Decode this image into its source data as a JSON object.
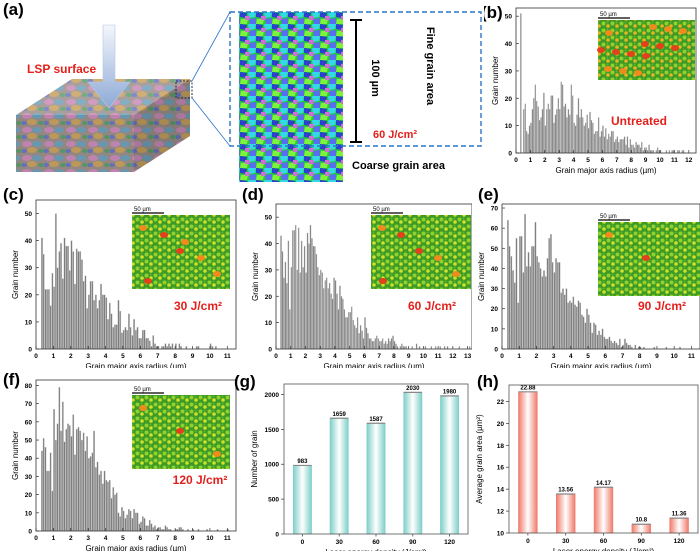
{
  "panel_a": {
    "label": "(a)",
    "lsp_label": "LSP surface",
    "scale_label": "100 µm",
    "fine_label": "Fine grain area",
    "energy_label": "60 J/cm²",
    "coarse_label": "Coarse grain area",
    "accent_red": "#e3201b",
    "callout_blue": "#2f75c8"
  },
  "chart_data": [
    {
      "id": "b",
      "label": "(b)",
      "type": "bar",
      "title": "",
      "annotation": "Untreated",
      "inset_scale": "50 µm",
      "xlabel": "Grain major axis radius (µm)",
      "ylabel": "Grain number",
      "xlim": [
        0,
        12.5
      ],
      "ylim": [
        0,
        53
      ],
      "xticks": [
        0,
        1,
        2,
        3,
        4,
        5,
        6,
        7,
        8,
        9,
        10,
        11,
        12
      ],
      "yticks": [
        0,
        10,
        20,
        30,
        40,
        50
      ],
      "bin_width": 0.1,
      "x_start": 0.3,
      "values": [
        51,
        0,
        16,
        18,
        8,
        7,
        10,
        11,
        16,
        20,
        25,
        19,
        17,
        12,
        13,
        16,
        22,
        10,
        16,
        18,
        16,
        21,
        21,
        11,
        14,
        16,
        20,
        16,
        26,
        25,
        17,
        18,
        13,
        16,
        14,
        25,
        21,
        11,
        10,
        14,
        20,
        13,
        16,
        13,
        10,
        11,
        14,
        9,
        15,
        12,
        11,
        7,
        8,
        8,
        13,
        6,
        8,
        10,
        6,
        9,
        5,
        7,
        6,
        8,
        8,
        4,
        5,
        6,
        4,
        5,
        5,
        5,
        6,
        3,
        6,
        2,
        5,
        3,
        3,
        2,
        4,
        3,
        3,
        2,
        4,
        1,
        2,
        2,
        1,
        3,
        1,
        1,
        1,
        0,
        1,
        2,
        1,
        1,
        0,
        0,
        0,
        1,
        0,
        1,
        0,
        1,
        1,
        0,
        0,
        1,
        1,
        0,
        1,
        1,
        0,
        0,
        0,
        0
      ],
      "bar_color": "#7d7d7d"
    },
    {
      "id": "c",
      "label": "(c)",
      "type": "bar",
      "annotation": "30 J/cm²",
      "inset_scale": "50 µm",
      "xlabel": "Grain major axis radius (µm)",
      "ylabel": "Grain number",
      "xlim": [
        0,
        11.5
      ],
      "ylim": [
        0,
        55
      ],
      "xticks": [
        0,
        1,
        2,
        3,
        4,
        5,
        6,
        7,
        8,
        9,
        10,
        11
      ],
      "yticks": [
        0,
        10,
        20,
        30,
        40,
        50
      ],
      "bin_width": 0.1,
      "x_start": 0.3,
      "values": [
        41,
        35,
        22,
        22,
        22,
        16,
        28,
        23,
        50,
        30,
        36,
        39,
        26,
        41,
        38,
        38,
        29,
        40,
        36,
        24,
        37,
        36,
        36,
        33,
        25,
        27,
        15,
        20,
        25,
        25,
        18,
        20,
        15,
        18,
        24,
        20,
        20,
        19,
        11,
        17,
        13,
        8,
        9,
        9,
        18,
        14,
        6,
        7,
        8,
        7,
        13,
        8,
        5,
        11,
        7,
        8,
        4,
        4,
        7,
        7,
        4,
        4,
        3,
        1,
        5,
        2,
        1,
        1,
        0,
        1,
        1,
        2,
        1,
        2,
        1,
        2,
        0,
        2,
        0,
        2,
        1,
        0,
        0,
        1,
        0,
        0,
        0,
        0,
        0,
        1,
        1,
        0,
        0,
        0,
        0,
        0,
        0,
        2,
        1,
        0,
        1
      ],
      "bar_color": "#7d7d7d"
    },
    {
      "id": "d",
      "label": "(d)",
      "type": "bar",
      "annotation": "60 J/cm²",
      "inset_scale": "50 µm",
      "xlabel": "Grain major axis radius (µm)",
      "ylabel": "Grain number",
      "xlim": [
        0,
        13.3
      ],
      "ylim": [
        0,
        55
      ],
      "xticks": [
        0,
        1,
        2,
        3,
        4,
        5,
        6,
        7,
        8,
        9,
        10,
        11,
        12,
        13
      ],
      "yticks": [
        0,
        10,
        20,
        30,
        40,
        50
      ],
      "bin_width": 0.1,
      "x_start": 0.3,
      "values": [
        43,
        37,
        27,
        33,
        25,
        41,
        15,
        31,
        45,
        45,
        47,
        30,
        46,
        29,
        41,
        31,
        39,
        29,
        44,
        40,
        47,
        42,
        39,
        39,
        36,
        31,
        28,
        30,
        29,
        23,
        26,
        27,
        23,
        25,
        21,
        19,
        27,
        26,
        21,
        15,
        24,
        20,
        19,
        15,
        12,
        12,
        14,
        14,
        16,
        11,
        9,
        8,
        12,
        6,
        9,
        7,
        4,
        12,
        8,
        6,
        4,
        4,
        3,
        3,
        4,
        5,
        4,
        3,
        3,
        4,
        2,
        3,
        2,
        4,
        3,
        4,
        5,
        3,
        2,
        1,
        0,
        1,
        2,
        1,
        1,
        1,
        0,
        0,
        0,
        1,
        0,
        0,
        2,
        0,
        1,
        0,
        0,
        0,
        1,
        0,
        0,
        0,
        1,
        0,
        0,
        1,
        0,
        0,
        1,
        0,
        0,
        1,
        0,
        1,
        0,
        0,
        0,
        0,
        0,
        0,
        0,
        1,
        0,
        0,
        0,
        0,
        0,
        0,
        1,
        0
      ],
      "bar_color": "#7d7d7d"
    },
    {
      "id": "e",
      "label": "(e)",
      "type": "bar",
      "annotation": "90 J/cm²",
      "inset_scale": "50 µm",
      "xlabel": "Grain major axis radius (µm)",
      "ylabel": "Grain number",
      "xlim": [
        0,
        11.5
      ],
      "ylim": [
        0,
        72
      ],
      "xticks": [
        0,
        1,
        2,
        3,
        4,
        5,
        6,
        7,
        8,
        9,
        10,
        11
      ],
      "yticks": [
        0,
        10,
        20,
        30,
        40,
        50,
        60,
        70
      ],
      "bin_width": 0.1,
      "x_start": 0.3,
      "values": [
        64,
        51,
        46,
        39,
        33,
        55,
        23,
        56,
        56,
        38,
        67,
        41,
        48,
        41,
        51,
        51,
        63,
        46,
        43,
        40,
        36,
        39,
        36,
        45,
        55,
        57,
        43,
        38,
        45,
        43,
        43,
        28,
        30,
        27,
        30,
        23,
        24,
        23,
        26,
        22,
        21,
        24,
        23,
        17,
        16,
        13,
        20,
        17,
        13,
        8,
        13,
        12,
        7,
        9,
        7,
        10,
        6,
        5,
        5,
        6,
        4,
        3,
        4,
        3,
        2,
        5,
        1,
        2,
        5,
        3,
        2,
        2,
        1,
        0,
        2,
        0,
        1,
        1,
        0,
        1,
        0,
        0,
        0,
        0,
        0,
        1,
        0,
        0,
        0,
        0,
        0,
        0,
        1,
        0,
        0,
        0,
        0,
        0,
        0,
        0,
        1,
        0
      ],
      "bar_color": "#7d7d7d"
    },
    {
      "id": "f",
      "label": "(f)",
      "type": "bar",
      "annotation": "120 J/cm²",
      "inset_scale": "50 µm",
      "xlabel": "Grain major axis radius (µm)",
      "ylabel": "Grain number",
      "xlim": [
        0,
        11.5
      ],
      "ylim": [
        0,
        83
      ],
      "xticks": [
        0,
        1,
        2,
        3,
        4,
        5,
        6,
        7,
        8,
        9,
        10,
        11
      ],
      "yticks": [
        0,
        10,
        20,
        30,
        40,
        50,
        60,
        70,
        80
      ],
      "bin_width": 0.1,
      "x_start": 0.3,
      "values": [
        44,
        51,
        46,
        33,
        33,
        43,
        22,
        67,
        50,
        59,
        79,
        55,
        71,
        49,
        56,
        59,
        58,
        52,
        64,
        42,
        56,
        57,
        55,
        50,
        54,
        44,
        52,
        40,
        41,
        43,
        55,
        35,
        38,
        31,
        33,
        26,
        33,
        28,
        27,
        28,
        18,
        24,
        20,
        21,
        10,
        8,
        13,
        11,
        7,
        9,
        12,
        11,
        7,
        12,
        10,
        10,
        4,
        5,
        8,
        7,
        3,
        3,
        6,
        4,
        2,
        3,
        1,
        2,
        2,
        1,
        1,
        3,
        2,
        1,
        1,
        0,
        0,
        1,
        1,
        2,
        2,
        1,
        0,
        0,
        1,
        0,
        0,
        1,
        0,
        0,
        1,
        0,
        0,
        0,
        0,
        1,
        0,
        0,
        0,
        0,
        0,
        1,
        0,
        0,
        0,
        0,
        0,
        1,
        0
      ],
      "bar_color": "#7d7d7d"
    },
    {
      "id": "g",
      "label": "(g)",
      "type": "bar",
      "xlabel": "Laser energy density (J/cm²)",
      "ylabel": "Number of grain",
      "categories": [
        "0",
        "30",
        "60",
        "90",
        "120"
      ],
      "values": [
        983,
        1659,
        1587,
        2030,
        1980
      ],
      "data_labels": [
        "983",
        "1659",
        "1587",
        "2030",
        "1980"
      ],
      "ylim": [
        0,
        2150
      ],
      "yticks": [
        0,
        500,
        1000,
        1500,
        2000
      ],
      "bar_color": "#7ecfc8"
    },
    {
      "id": "h",
      "label": "(h)",
      "type": "bar",
      "xlabel": "Laser energy density (J/cm²)",
      "ylabel": "Average grain area (µm²)",
      "categories": [
        "0",
        "30",
        "60",
        "90",
        "120"
      ],
      "values": [
        22.88,
        13.56,
        14.17,
        10.8,
        11.36
      ],
      "data_labels": [
        "22.88",
        "13.56",
        "14.17",
        "10.8",
        "11.36"
      ],
      "ylim": [
        10,
        23.5
      ],
      "yticks": [
        10,
        12,
        14,
        16,
        18,
        20,
        22
      ],
      "bar_color": "#f08070"
    }
  ]
}
